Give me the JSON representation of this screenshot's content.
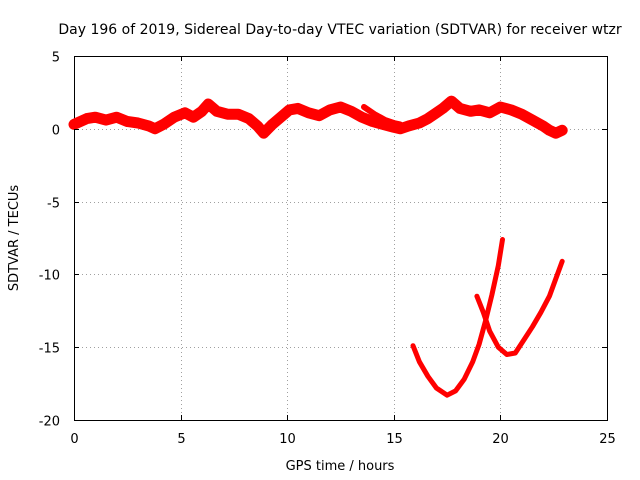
{
  "chart_data": {
    "type": "line",
    "title": "Day 196 of 2019, Sidereal Day-to-day VTEC variation (SDTVAR) for receiver wtzr",
    "xlabel": "GPS time / hours",
    "ylabel": "SDTVAR / TECUs",
    "xlim": [
      0,
      25
    ],
    "ylim": [
      -20,
      5
    ],
    "xticks": [
      0,
      5,
      10,
      15,
      20,
      25
    ],
    "xtick_labels": [
      "0",
      "5",
      "10",
      "15",
      "20",
      "25"
    ],
    "yticks": [
      5,
      0,
      -5,
      -10,
      -15,
      -20
    ],
    "ytick_labels": [
      "5",
      "0",
      "-5",
      "-10",
      "-15",
      "-20"
    ],
    "grid": true,
    "color": "#ff0000",
    "series": [
      {
        "name": "main-band",
        "x": [
          0,
          0.3,
          0.6,
          1,
          1.5,
          2,
          2.5,
          3,
          3.5,
          3.8,
          4.2,
          4.7,
          5.2,
          5.6,
          6,
          6.3,
          6.7,
          7.2,
          7.7,
          8.2,
          8.6,
          8.9,
          9.3,
          9.7,
          10.1,
          10.5,
          11,
          11.5,
          12,
          12.5,
          13,
          13.5,
          14,
          14.5,
          15,
          15.3,
          15.7,
          16.2,
          16.6,
          17,
          17.3,
          17.7,
          18.1,
          18.6,
          19,
          19.5,
          20,
          20.5,
          21,
          21.5,
          22,
          22.3,
          22.6,
          22.9
        ],
        "values": [
          0.3,
          0.5,
          0.7,
          0.8,
          0.6,
          0.8,
          0.5,
          0.4,
          0.2,
          0,
          0.3,
          0.8,
          1.1,
          0.8,
          1.2,
          1.7,
          1.2,
          1.0,
          1.0,
          0.7,
          0.2,
          -0.3,
          0.3,
          0.8,
          1.3,
          1.4,
          1.1,
          0.9,
          1.3,
          1.5,
          1.2,
          0.8,
          0.5,
          0.3,
          0.1,
          0,
          0.2,
          0.4,
          0.7,
          1.1,
          1.4,
          1.9,
          1.4,
          1.2,
          1.3,
          1.1,
          1.5,
          1.3,
          1.0,
          0.6,
          0.2,
          -0.1,
          -0.3,
          -0.1
        ],
        "width": 11
      },
      {
        "name": "secondary-band",
        "x": [
          13.6,
          14.1,
          14.6,
          15,
          15.3
        ],
        "values": [
          1.5,
          1.0,
          0.6,
          0.4,
          0.3
        ],
        "width": 6
      },
      {
        "name": "arc-a",
        "x": [
          15.9,
          16.2,
          16.6,
          17,
          17.5,
          17.9,
          18.3,
          18.7,
          19,
          19.3,
          19.6,
          19.9,
          20.1
        ],
        "values": [
          -14.9,
          -16.0,
          -17.0,
          -17.8,
          -18.3,
          -18.0,
          -17.2,
          -16.0,
          -14.8,
          -13.2,
          -11.4,
          -9.4,
          -7.6
        ],
        "width": 5
      },
      {
        "name": "arc-b",
        "x": [
          18.9,
          19.2,
          19.5,
          19.9,
          20.3,
          20.7,
          21.1,
          21.5,
          21.9,
          22.3,
          22.6,
          22.9
        ],
        "values": [
          -11.5,
          -12.6,
          -13.9,
          -15.0,
          -15.5,
          -15.4,
          -14.5,
          -13.6,
          -12.6,
          -11.5,
          -10.3,
          -9.1
        ],
        "width": 5
      }
    ]
  }
}
